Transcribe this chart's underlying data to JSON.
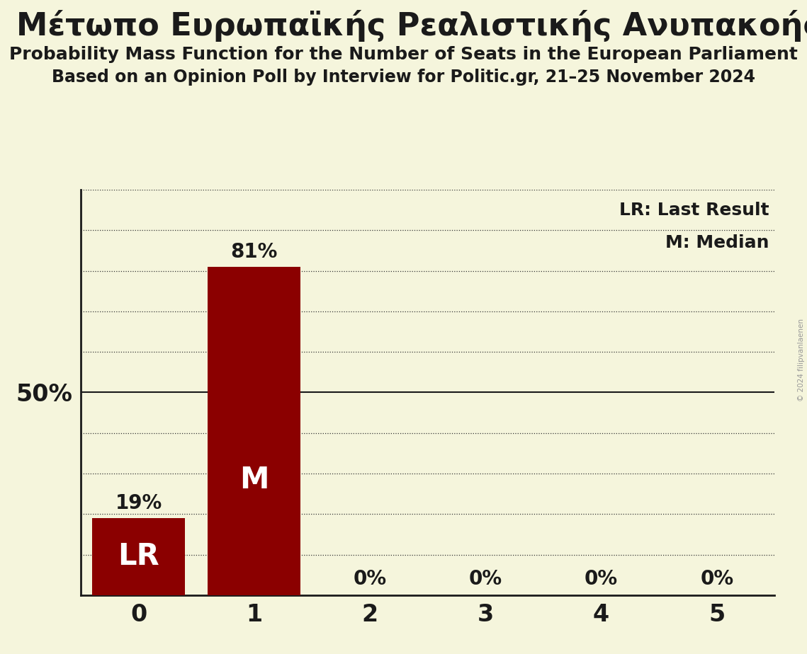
{
  "title_party": "Μέτωπο Ευρωπαϊκής Ρεαλιστικής Ανυπακοής (GUE/NG",
  "title_line1": "Probability Mass Function for the Number of Seats in the European Parliament",
  "title_line2": "Based on an Opinion Poll by Interview for Politic.gr, 21–25 November 2024",
  "categories": [
    0,
    1,
    2,
    3,
    4,
    5
  ],
  "values": [
    0.19,
    0.81,
    0.0,
    0.0,
    0.0,
    0.0
  ],
  "bar_color": "#8B0000",
  "background_color": "#F5F5DC",
  "label_LR": "LR",
  "label_M": "M",
  "LR_seat": 0,
  "M_seat": 1,
  "legend_LR": "LR: Last Result",
  "legend_M": "M: Median",
  "ylim": [
    0,
    1.0
  ],
  "copyright": "© 2024 filipvanlaenen"
}
